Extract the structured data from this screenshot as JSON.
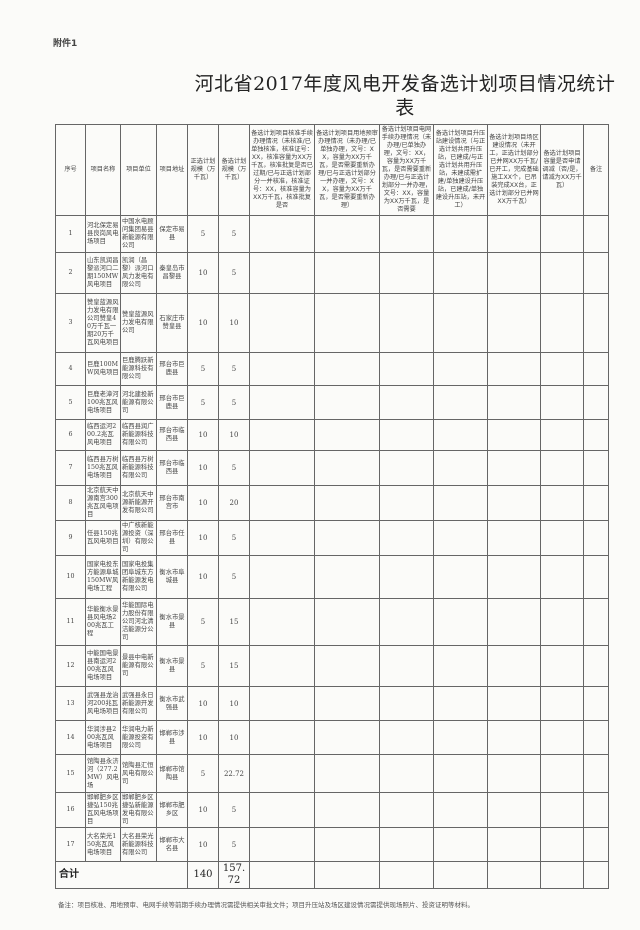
{
  "attachment_label": "附件1",
  "title": "河北省2017年度风电开发备选计划项目情况统计表",
  "headers": [
    "序号",
    "项目名称",
    "项目单位",
    "项目地址",
    "正选计划规模（万千瓦）",
    "备选计划规模（万千瓦）",
    "备选计划项目核准手续办理情况（未核准/已单独核准，核准证号：XX，核准容量为XX万千瓦，核准批复是否已过期/已与正选计划部分一并核准，核准证号：XX，核准容量为XX万千瓦，核准批复是否",
    "备选计划项目用地预审办理情况（未办理/已单独办理，文号：XX，容量为XX万千瓦，是否需要重新办理/已与正选计划部分一并办理，文号：XX，容量为XX万千瓦，是否需要重新办理）",
    "备选计划项目电网手续办理情况（未办理/已单独办理，文号：XX，容量为XX万千瓦，是否需要重新办理/已与正选计划部分一并办理，文号：XX，容量为XX万千瓦，是否需要",
    "备选计划项目升压站建设情况（与正选计划共用升压站，已建成/与正选计划共用升压站，未建成需扩建/单独建设升压站，已建成/单独建设升压站，未开工）",
    "备选计划项目场区建设情况（未开工，正选计划部分已并网XX万千瓦/已开工，完成基础施工XX个，已吊装完成XX台，正选计划部分已并网XX万千瓦）",
    "备选计划项目容量是否申请调减（否/是，请减为XX万千瓦）",
    "备注"
  ],
  "rows": [
    {
      "no": "1",
      "name": "河北保定易县良岗风电场项目",
      "unit": "中国水电顾问集团易县新能源有限公司",
      "address": "保定市易县",
      "primary": "5",
      "backup": "5"
    },
    {
      "no": "2",
      "name": "山东凯润昌黎派河口二期150MW风电项目",
      "unit": "凯润（昌黎）派河口风力发电有限公司",
      "address": "秦皇岛市昌黎县",
      "primary": "10",
      "backup": "5"
    },
    {
      "no": "3",
      "name": "赞皇蓝源风力发电有限公司赞皇40万千瓦一期20万千瓦风电项目",
      "unit": "赞皇蓝源风力发电有限公司",
      "address": "石家庄市赞皇县",
      "primary": "10",
      "backup": "10"
    },
    {
      "no": "4",
      "name": "巨鹿100MW风电项目",
      "unit": "巨鹿腾跃新能源科技有限公司",
      "address": "邢台市巨鹿县",
      "primary": "5",
      "backup": "5"
    },
    {
      "no": "5",
      "name": "巨鹿老漳河100兆瓦风电场项目",
      "unit": "河北建投新能源有限公司",
      "address": "邢台市巨鹿县",
      "primary": "5",
      "backup": "5"
    },
    {
      "no": "6",
      "name": "临西运河200.2兆瓦风电项目",
      "unit": "临西县润广新能源科技有限公司",
      "address": "邢台市临西县",
      "primary": "10",
      "backup": "10"
    },
    {
      "no": "7",
      "name": "临西县万树150兆瓦风电场项目",
      "unit": "临西县万树新能源科技有限公司",
      "address": "邢台市临西县",
      "primary": "10",
      "backup": "5"
    },
    {
      "no": "8",
      "name": "北京航天中源南宫300兆瓦风电项目",
      "unit": "北京航天中源新能源开发有限公司",
      "address": "邢台市南宫市",
      "primary": "10",
      "backup": "20"
    },
    {
      "no": "9",
      "name": "任县150兆瓦风电项目",
      "unit": "中广核新能源投资（深圳）有限公司",
      "address": "邢台市任县",
      "primary": "10",
      "backup": "5"
    },
    {
      "no": "10",
      "name": "国家电投东方能源阜城150MW风电场工程",
      "unit": "国家电投集团阜城东方新能源发电有限公司",
      "address": "衡水市阜城县",
      "primary": "10",
      "backup": "5"
    },
    {
      "no": "11",
      "name": "华能衡水景县风电场200兆瓦工程",
      "unit": "华能国际电力股份有限公司河北清洁能源分公司",
      "address": "衡水市景县",
      "primary": "5",
      "backup": "15"
    },
    {
      "no": "12",
      "name": "中能国电景县南运河200兆瓦风电场项目",
      "unit": "景县中电新能源有限公司",
      "address": "衡水市景县",
      "primary": "5",
      "backup": "15"
    },
    {
      "no": "13",
      "name": "武强县龙治河200兆瓦风电场项目",
      "unit": "武强县永日新能源开发有限公司",
      "address": "衡水市武强县",
      "primary": "10",
      "backup": "10"
    },
    {
      "no": "14",
      "name": "华润涉县200兆瓦风电场项目",
      "unit": "华润电力新能源投资有限公司",
      "address": "邯郸市涉县",
      "primary": "10",
      "backup": "10"
    },
    {
      "no": "15",
      "name": "馆陶县永济河（277.2MW）风电场",
      "unit": "馆陶县汇恒风电有限公司",
      "address": "邯郸市馆陶县",
      "primary": "5",
      "backup": "22.72"
    },
    {
      "no": "16",
      "name": "邯郸肥乡区捷弘150兆瓦风电场项目",
      "unit": "邯郸肥乡区捷弘新能源发电有限公司",
      "address": "邯郸市肥乡区",
      "primary": "10",
      "backup": "5"
    },
    {
      "no": "17",
      "name": "大名荣光150兆瓦风电场项目",
      "unit": "大名县荣光新能源科技有限公司",
      "address": "邯郸市大名县",
      "primary": "10",
      "backup": "5"
    }
  ],
  "total": {
    "label": "合计",
    "primary": "140",
    "backup": "157.72"
  },
  "note": "备注：项目核准、用地预审、电网手续等前期手续办理情况需提供相关审批文件；项目升压站及场区建设情况需提供现场照片、投资证明等材料。"
}
